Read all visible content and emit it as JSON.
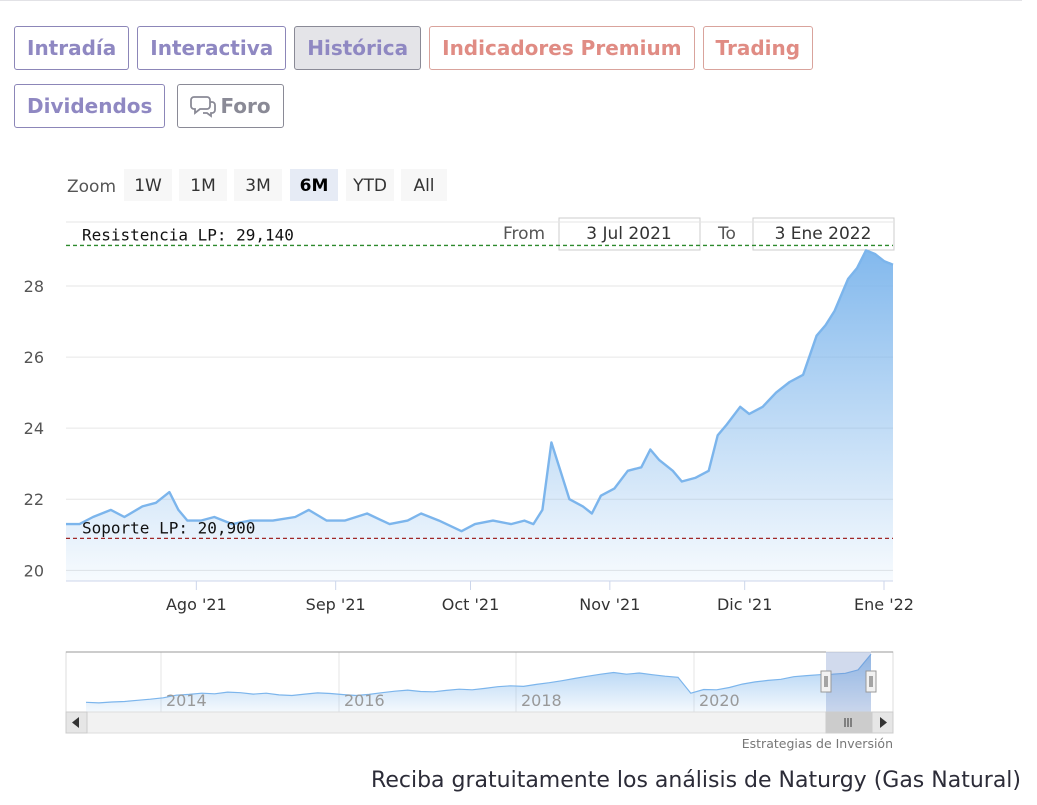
{
  "tabs": [
    {
      "label": "Intradía",
      "style": "normal"
    },
    {
      "label": "Interactiva",
      "style": "normal"
    },
    {
      "label": "Histórica",
      "style": "active"
    },
    {
      "label": "Indicadores Premium",
      "style": "premium"
    },
    {
      "label": "Trading",
      "style": "premium"
    },
    {
      "label": "Dividendos",
      "style": "normal"
    },
    {
      "label": "Foro",
      "style": "foro",
      "icon": "chat-bubble-icon"
    }
  ],
  "zoom": {
    "label": "Zoom",
    "buttons": [
      "1W",
      "1M",
      "3M",
      "6M",
      "YTD",
      "All"
    ],
    "selected": "6M"
  },
  "range": {
    "from_label": "From",
    "from_value": "3 Jul 2021",
    "to_label": "To",
    "to_value": "3 Ene 2022"
  },
  "chart_data": {
    "type": "area",
    "x_range": [
      "2021-07-03",
      "2022-01-03"
    ],
    "ylim": [
      19.7,
      29.8
    ],
    "y_ticks": [
      20,
      22,
      24,
      26,
      28
    ],
    "x_ticks": [
      {
        "date": "2021-08-01",
        "label": "Ago '21"
      },
      {
        "date": "2021-09-01",
        "label": "Sep '21"
      },
      {
        "date": "2021-10-01",
        "label": "Oct '21"
      },
      {
        "date": "2021-11-01",
        "label": "Nov '21"
      },
      {
        "date": "2021-12-01",
        "label": "Dic '21"
      },
      {
        "date": "2022-01-01",
        "label": "Ene '22"
      }
    ],
    "grid": true,
    "series": [
      {
        "x": [
          "2021-07-03",
          "2021-07-06",
          "2021-07-09",
          "2021-07-13",
          "2021-07-16",
          "2021-07-20",
          "2021-07-23",
          "2021-07-26",
          "2021-07-28",
          "2021-07-30",
          "2021-08-02",
          "2021-08-05",
          "2021-08-09",
          "2021-08-13",
          "2021-08-18",
          "2021-08-23",
          "2021-08-26",
          "2021-08-30",
          "2021-09-03",
          "2021-09-08",
          "2021-09-13",
          "2021-09-17",
          "2021-09-20",
          "2021-09-24",
          "2021-09-29",
          "2021-10-02",
          "2021-10-06",
          "2021-10-10",
          "2021-10-13",
          "2021-10-15",
          "2021-10-17",
          "2021-10-19",
          "2021-10-21",
          "2021-10-23",
          "2021-10-26",
          "2021-10-28",
          "2021-10-30",
          "2021-11-02",
          "2021-11-05",
          "2021-11-08",
          "2021-11-10",
          "2021-11-12",
          "2021-11-15",
          "2021-11-17",
          "2021-11-20",
          "2021-11-23",
          "2021-11-25",
          "2021-11-27",
          "2021-11-30",
          "2021-12-02",
          "2021-12-05",
          "2021-12-08",
          "2021-12-11",
          "2021-12-14",
          "2021-12-17",
          "2021-12-19",
          "2021-12-21",
          "2021-12-24",
          "2021-12-26",
          "2021-12-28",
          "2021-12-30",
          "2022-01-01",
          "2022-01-03"
        ],
        "y": [
          21.3,
          21.3,
          21.5,
          21.7,
          21.5,
          21.8,
          21.9,
          22.2,
          21.7,
          21.4,
          21.4,
          21.5,
          21.3,
          21.4,
          21.4,
          21.5,
          21.7,
          21.4,
          21.4,
          21.6,
          21.3,
          21.4,
          21.6,
          21.4,
          21.1,
          21.3,
          21.4,
          21.3,
          21.4,
          21.3,
          21.7,
          23.6,
          22.8,
          22.0,
          21.8,
          21.6,
          22.1,
          22.3,
          22.8,
          22.9,
          23.4,
          23.1,
          22.8,
          22.5,
          22.6,
          22.8,
          23.8,
          24.1,
          24.6,
          24.4,
          24.6,
          25.0,
          25.3,
          25.5,
          26.6,
          26.9,
          27.3,
          28.2,
          28.5,
          29.0,
          28.9,
          28.7,
          28.6
        ],
        "color": "#7cb5ec"
      }
    ],
    "plot_lines": [
      {
        "value": 29.14,
        "label": "Resistencia LP: 29,140",
        "color": "#2d8a2d"
      },
      {
        "value": 20.9,
        "label": "Soporte LP: 20,900",
        "color": "#a02828"
      }
    ],
    "navigator": {
      "x_labels": [
        "2014",
        "2016",
        "2018",
        "2020"
      ],
      "y": [
        12.0,
        11.8,
        12.1,
        12.3,
        12.7,
        13.1,
        13.6,
        14.5,
        14.8,
        15.2,
        15.0,
        15.6,
        15.4,
        14.9,
        15.2,
        14.6,
        14.4,
        14.9,
        15.3,
        15.1,
        14.7,
        14.4,
        14.8,
        15.4,
        15.9,
        16.3,
        15.8,
        15.7,
        16.2,
        16.6,
        16.4,
        16.9,
        17.5,
        17.8,
        17.6,
        18.3,
        18.9,
        19.6,
        20.4,
        21.2,
        21.9,
        22.5,
        21.9,
        22.3,
        21.7,
        21.2,
        20.8,
        15.2,
        16.5,
        16.4,
        17.2,
        18.4,
        19.2,
        19.7,
        20.1,
        21.0,
        21.4,
        21.7,
        21.9,
        22.2,
        23.4,
        28.9
      ]
    },
    "scrollbar_thumb_icon": "grip-lines-icon",
    "credits": "Estrategias de Inversión"
  },
  "footer": {
    "text": "Reciba gratuitamente los análisis de Naturgy (Gas Natural)"
  }
}
